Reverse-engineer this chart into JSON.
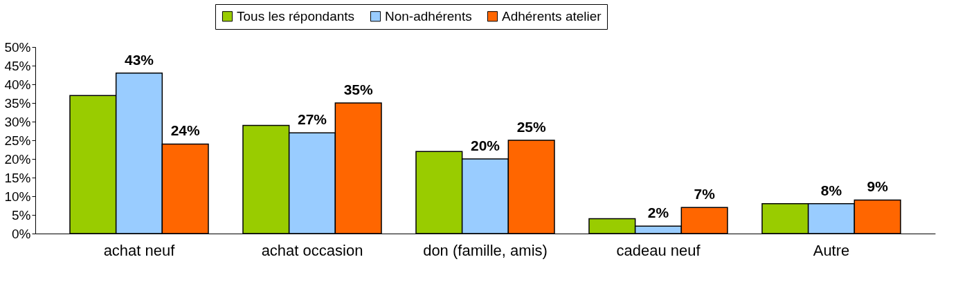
{
  "chart_data": {
    "type": "bar",
    "categories": [
      "achat neuf",
      "achat occasion",
      "don (famille, amis)",
      "cadeau neuf",
      "Autre"
    ],
    "series": [
      {
        "name": "Tous les répondants",
        "color": "#99cc00",
        "values": [
          37,
          29,
          22,
          4,
          8
        ],
        "value_labels": [
          null,
          null,
          null,
          null,
          null
        ]
      },
      {
        "name": "Non-adhérents",
        "color": "#99ccff",
        "values": [
          43,
          27,
          20,
          2,
          8
        ],
        "value_labels": [
          "43%",
          "27%",
          "20%",
          "2%",
          "8%"
        ]
      },
      {
        "name": "Adhérents atelier",
        "color": "#ff6600",
        "values": [
          24,
          35,
          25,
          7,
          9
        ],
        "value_labels": [
          "24%",
          "35%",
          "25%",
          "7%",
          "9%"
        ]
      }
    ],
    "ylim": [
      0,
      50
    ],
    "yticks": [
      {
        "value": 0,
        "label": "0%"
      },
      {
        "value": 5,
        "label": "5%"
      },
      {
        "value": 10,
        "label": "10%"
      },
      {
        "value": 15,
        "label": "15%"
      },
      {
        "value": 20,
        "label": "20%"
      },
      {
        "value": 25,
        "label": "25%"
      },
      {
        "value": 30,
        "label": "30%"
      },
      {
        "value": 35,
        "label": "35%"
      },
      {
        "value": 40,
        "label": "40%"
      },
      {
        "value": 45,
        "label": "45%"
      },
      {
        "value": 50,
        "label": "50%"
      }
    ],
    "grid": false,
    "legend": "top"
  }
}
